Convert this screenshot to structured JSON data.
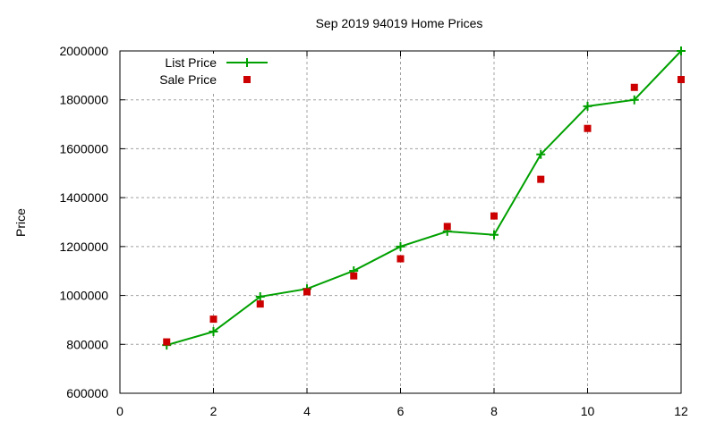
{
  "chart_data": {
    "type": "line",
    "title": "Sep 2019 94019 Home Prices",
    "xlabel": "",
    "ylabel": "Price",
    "xlim": [
      0,
      12
    ],
    "ylim": [
      600000,
      2000000
    ],
    "xticks": [
      "0",
      "2",
      "4",
      "6",
      "8",
      "10",
      "12"
    ],
    "yticks": [
      "600000",
      "800000",
      "1000000",
      "1200000",
      "1400000",
      "1600000",
      "1800000",
      "2000000"
    ],
    "grid": true,
    "legend_position": "top-left",
    "x": [
      1,
      2,
      3,
      4,
      5,
      6,
      7,
      8,
      9,
      10,
      11,
      12
    ],
    "series": [
      {
        "name": "List Price",
        "style": "linespoints",
        "marker": "plus",
        "color": "#00a000",
        "values": [
          797000,
          852000,
          995000,
          1027000,
          1101000,
          1200000,
          1262000,
          1248000,
          1577000,
          1774000,
          1800000,
          2000000
        ]
      },
      {
        "name": "Sale Price",
        "style": "points",
        "marker": "square",
        "color": "#cc0000",
        "values": [
          810000,
          903000,
          965000,
          1015000,
          1080000,
          1150000,
          1282000,
          1325000,
          1475000,
          1683000,
          1851000,
          1883000
        ]
      }
    ]
  }
}
